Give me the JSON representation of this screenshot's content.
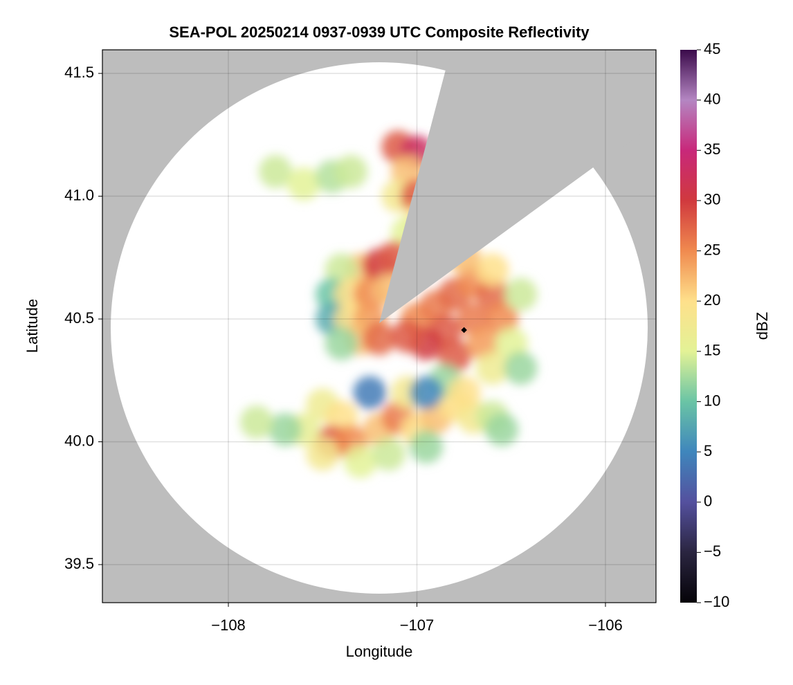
{
  "chart_data": {
    "type": "scatter",
    "title": "SEA-POL 20250214 0937-0939 UTC Composite Reflectivity",
    "xlabel": "Longitude",
    "ylabel": "Latitude",
    "xlim": [
      -108.668,
      -105.732
    ],
    "ylim": [
      39.345,
      41.596
    ],
    "xticks": [
      {
        "value": -108,
        "label": "−108"
      },
      {
        "value": -107,
        "label": "−107"
      },
      {
        "value": -106,
        "label": "−106"
      }
    ],
    "yticks": [
      39.5,
      {
        "value": 40,
        "label": "40.0"
      },
      40.5,
      {
        "value": 41,
        "label": "41.0"
      },
      41.5
    ],
    "grid": true,
    "x": [
      -107.1,
      -107.0,
      -107.05,
      -107.1,
      -107.0,
      -106.98,
      -107.05,
      -107.75,
      -107.6,
      -107.45,
      -107.35,
      -107.3,
      -107.2,
      -107.12,
      -107.4,
      -107.45,
      -107.35,
      -107.25,
      -107.15,
      -107.45,
      -107.35,
      -107.25,
      -107.3,
      -107.2,
      -107.4,
      -107.0,
      -106.9,
      -106.8,
      -106.7,
      -106.6,
      -106.55,
      -106.7,
      -106.85,
      -106.95,
      -106.8,
      -106.65,
      -106.5,
      -106.45,
      -106.6,
      -106.75,
      -107.05,
      -106.6,
      -106.45,
      -107.5,
      -107.4,
      -107.45,
      -107.35,
      -107.2,
      -107.1,
      -107.0,
      -106.9,
      -106.8,
      -106.7,
      -106.6,
      -106.55,
      -107.6,
      -107.5,
      -107.3,
      -107.15,
      -106.95,
      -107.05,
      -106.85,
      -106.95,
      -106.75,
      -107.25,
      -107.7,
      -107.85
    ],
    "y": [
      41.2,
      41.18,
      41.1,
      41.0,
      41.0,
      40.9,
      40.85,
      41.1,
      41.05,
      41.08,
      41.1,
      40.7,
      40.72,
      40.75,
      40.7,
      40.6,
      40.6,
      40.6,
      40.62,
      40.5,
      40.5,
      40.5,
      40.42,
      40.42,
      40.4,
      40.5,
      40.55,
      40.6,
      40.65,
      40.6,
      40.5,
      40.5,
      40.45,
      40.4,
      40.35,
      40.4,
      40.4,
      40.6,
      40.7,
      40.75,
      40.43,
      40.3,
      40.3,
      40.15,
      40.1,
      40.0,
      40.0,
      40.05,
      40.1,
      40.05,
      40.1,
      40.15,
      40.1,
      40.1,
      40.05,
      40.05,
      39.95,
      39.92,
      39.95,
      39.98,
      40.2,
      40.25,
      40.2,
      40.2,
      40.2,
      40.05,
      40.08
    ],
    "values": [
      28,
      33,
      22,
      18,
      28,
      20,
      15,
      14,
      15,
      13,
      14,
      22,
      30,
      28,
      14,
      10,
      20,
      25,
      22,
      8,
      20,
      24,
      22,
      27,
      12,
      25,
      26,
      27,
      25,
      27,
      25,
      26,
      28,
      30,
      28,
      24,
      15,
      14,
      20,
      22,
      28,
      17,
      12,
      17,
      20,
      28,
      25,
      22,
      26,
      20,
      22,
      20,
      18,
      14,
      12,
      16,
      18,
      15,
      14,
      12,
      18,
      12,
      5,
      20,
      4,
      12,
      14
    ],
    "marker": {
      "x": -106.75,
      "y": 40.455,
      "color": "#000000"
    },
    "background_color": "#bdbdbd",
    "colorbar_label": "dBZ",
    "clim": [
      -10,
      45
    ],
    "cticks": [
      {
        "value": -10,
        "label": "−10"
      },
      {
        "value": -5,
        "label": "−5"
      },
      0,
      5,
      10,
      15,
      20,
      25,
      30,
      35,
      40,
      45
    ],
    "colormap": [
      "#050308",
      "#2a2540",
      "#54509e",
      "#3f86bc",
      "#6ac4a5",
      "#e3f296",
      "#fee08b",
      "#f08a4f",
      "#d0393e",
      "#c8287a",
      "#b486c2",
      "#3a0a4a"
    ]
  }
}
